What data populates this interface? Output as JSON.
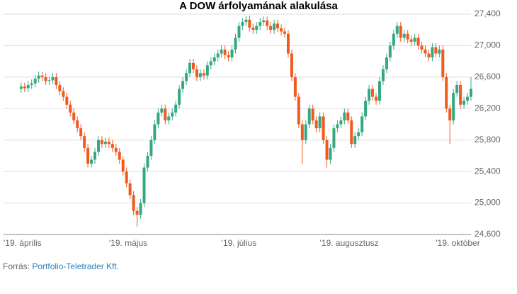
{
  "chart_data": {
    "type": "candlestick",
    "title": "A DOW árfolyamának alakulása",
    "source": {
      "prefix": "Forrás:",
      "link": "Portfolio-Teletrader Kft."
    },
    "up_color": "#35a883",
    "down_color": "#f05a1e",
    "grid": true,
    "ylim": [
      24600,
      27500
    ],
    "yticks": [
      {
        "value": 24600,
        "label": "24,600"
      },
      {
        "value": 25000,
        "label": "25,000"
      },
      {
        "value": 25400,
        "label": "25,400"
      },
      {
        "value": 25800,
        "label": "25,800"
      },
      {
        "value": 26200,
        "label": "26,200"
      },
      {
        "value": 26600,
        "label": "26,600"
      },
      {
        "value": 27000,
        "label": "27,000"
      },
      {
        "value": 27400,
        "label": "27,400"
      }
    ],
    "xlim": [
      -5,
      128
    ],
    "xticks": [
      {
        "value": -5,
        "label": "'19. április"
      },
      {
        "value": 25,
        "label": "'19. május"
      },
      {
        "value": 57,
        "label": "'19. július"
      },
      {
        "value": 85,
        "label": "'19. augusztusz"
      },
      {
        "value": 118,
        "label": "'19. október"
      }
    ],
    "x": [
      0,
      1,
      2,
      3,
      4,
      5,
      6,
      7,
      8,
      9,
      10,
      11,
      12,
      13,
      14,
      15,
      16,
      17,
      18,
      19,
      20,
      21,
      22,
      23,
      24,
      25,
      26,
      27,
      28,
      29,
      30,
      31,
      32,
      33,
      34,
      35,
      36,
      37,
      38,
      39,
      40,
      41,
      42,
      43,
      44,
      45,
      46,
      47,
      48,
      49,
      50,
      51,
      52,
      53,
      54,
      55,
      56,
      57,
      58,
      59,
      60,
      61,
      62,
      63,
      64,
      65,
      66,
      67,
      68,
      69,
      70,
      71,
      72,
      73,
      74,
      75,
      76,
      77,
      78,
      79,
      80,
      81,
      82,
      83,
      84,
      85,
      86,
      87,
      88,
      89,
      90,
      91,
      92,
      93,
      94,
      95,
      96,
      97,
      98,
      99,
      100,
      101,
      102,
      103,
      104,
      105,
      106,
      107,
      108,
      109,
      110,
      111,
      112,
      113,
      114,
      115,
      116,
      117,
      118,
      119,
      120,
      121,
      122,
      123,
      124,
      125,
      126,
      127,
      128
    ],
    "open": [
      26450,
      26480,
      26460,
      26500,
      26520,
      26580,
      26620,
      26600,
      26550,
      26560,
      26600,
      26500,
      26420,
      26350,
      26250,
      26150,
      26050,
      25950,
      25850,
      25700,
      25500,
      25550,
      25650,
      25800,
      25750,
      25780,
      25750,
      25700,
      25650,
      25550,
      25400,
      25250,
      25100,
      24900,
      24850,
      25000,
      25450,
      25600,
      25800,
      26000,
      26150,
      26200,
      26050,
      26100,
      26150,
      26250,
      26450,
      26550,
      26650,
      26780,
      26700,
      26600,
      26650,
      26620,
      26750,
      26800,
      26850,
      26900,
      26950,
      26880,
      26850,
      26950,
      27100,
      27250,
      27300,
      27330,
      27230,
      27200,
      27250,
      27300,
      27320,
      27250,
      27200,
      27280,
      27220,
      27180,
      27150,
      26900,
      26600,
      26350,
      26000,
      25800,
      26000,
      26200,
      26050,
      25950,
      26100,
      25800,
      25550,
      25700,
      25950,
      26000,
      26050,
      26150,
      26050,
      25750,
      25850,
      25900,
      26100,
      26300,
      26450,
      26350,
      26300,
      26550,
      26700,
      26850,
      27000,
      27150,
      27250,
      27100,
      27150,
      27080,
      27050,
      27100,
      27000,
      26950,
      26900,
      26850,
      26980,
      26900,
      26950,
      26600,
      26200,
      26050,
      26400,
      26500,
      26250,
      26300,
      26350
    ],
    "high": [
      26530,
      26530,
      26550,
      26570,
      26630,
      26670,
      26670,
      26650,
      26610,
      26650,
      26650,
      26550,
      26470,
      26400,
      26300,
      26200,
      26100,
      26000,
      25900,
      25750,
      25600,
      25700,
      25850,
      25850,
      25830,
      25830,
      25800,
      25750,
      25700,
      25600,
      25450,
      25300,
      25150,
      24950,
      25050,
      25500,
      25650,
      25850,
      26050,
      26200,
      26250,
      26250,
      26150,
      26200,
      26300,
      26500,
      26600,
      26700,
      26830,
      26830,
      26750,
      26700,
      26700,
      26800,
      26850,
      26900,
      26950,
      27000,
      27000,
      26930,
      27000,
      27150,
      27300,
      27350,
      27380,
      27380,
      27280,
      27300,
      27350,
      27370,
      27370,
      27300,
      27330,
      27330,
      27270,
      27230,
      27200,
      26950,
      26650,
      26400,
      26050,
      26050,
      26250,
      26250,
      26100,
      26150,
      26150,
      25850,
      25750,
      26000,
      26050,
      26100,
      26200,
      26200,
      26100,
      25900,
      25950,
      26150,
      26350,
      26500,
      26500,
      26400,
      26600,
      26750,
      26900,
      27050,
      27200,
      27300,
      27300,
      27200,
      27200,
      27130,
      27150,
      27150,
      27050,
      27000,
      26950,
      27030,
      27030,
      27000,
      27000,
      26650,
      26250,
      26450,
      26550,
      26550,
      26350,
      26400,
      26600
    ],
    "low": [
      26400,
      26410,
      26410,
      26450,
      26470,
      26530,
      26550,
      26500,
      26500,
      26510,
      26450,
      26370,
      26300,
      26200,
      26100,
      26000,
      25900,
      25800,
      25650,
      25450,
      25450,
      25500,
      25600,
      25700,
      25700,
      25700,
      25650,
      25600,
      25500,
      25350,
      25200,
      25050,
      24850,
      24700,
      24800,
      24950,
      25400,
      25550,
      25750,
      25950,
      26100,
      26000,
      26000,
      26050,
      26100,
      26200,
      26400,
      26500,
      26600,
      26650,
      26550,
      26550,
      26570,
      26570,
      26700,
      26750,
      26800,
      26850,
      26830,
      26800,
      26800,
      26900,
      27050,
      27200,
      27250,
      27180,
      27150,
      27150,
      27200,
      27250,
      27200,
      27150,
      27150,
      27170,
      27130,
      27100,
      26850,
      26550,
      26300,
      25950,
      25500,
      25750,
      25950,
      26000,
      25900,
      25900,
      25750,
      25450,
      25500,
      25650,
      25900,
      25950,
      26000,
      26000,
      25700,
      25700,
      25800,
      25850,
      26050,
      26250,
      26300,
      26250,
      26250,
      26500,
      26650,
      26800,
      26950,
      27100,
      27050,
      27050,
      27030,
      27000,
      27000,
      26950,
      26900,
      26850,
      26800,
      26800,
      26850,
      26850,
      26550,
      26150,
      25750,
      26000,
      26350,
      26200,
      26200,
      26250,
      26300
    ],
    "close": [
      26480,
      26460,
      26500,
      26520,
      26580,
      26620,
      26600,
      26550,
      26560,
      26600,
      26500,
      26420,
      26350,
      26250,
      26150,
      26050,
      25950,
      25850,
      25700,
      25500,
      25550,
      25650,
      25800,
      25750,
      25780,
      25750,
      25700,
      25650,
      25550,
      25400,
      25250,
      25100,
      24900,
      24850,
      25000,
      25450,
      25600,
      25800,
      26000,
      26150,
      26200,
      26050,
      26100,
      26150,
      26250,
      26450,
      26550,
      26650,
      26780,
      26700,
      26600,
      26650,
      26620,
      26750,
      26800,
      26850,
      26900,
      26950,
      26880,
      26850,
      26950,
      27100,
      27250,
      27300,
      27330,
      27230,
      27200,
      27250,
      27300,
      27320,
      27250,
      27200,
      27280,
      27220,
      27180,
      27150,
      26900,
      26600,
      26350,
      26000,
      25800,
      26000,
      26200,
      26050,
      25950,
      26100,
      25800,
      25550,
      25700,
      25950,
      26000,
      26050,
      26150,
      26050,
      25750,
      25850,
      25900,
      26100,
      26300,
      26450,
      26350,
      26300,
      26550,
      26700,
      26850,
      27000,
      27150,
      27250,
      27100,
      27150,
      27080,
      27050,
      27100,
      27000,
      26950,
      26900,
      26850,
      26980,
      26900,
      26950,
      26600,
      26200,
      26050,
      26400,
      26500,
      26250,
      26300,
      26350,
      26450
    ]
  }
}
